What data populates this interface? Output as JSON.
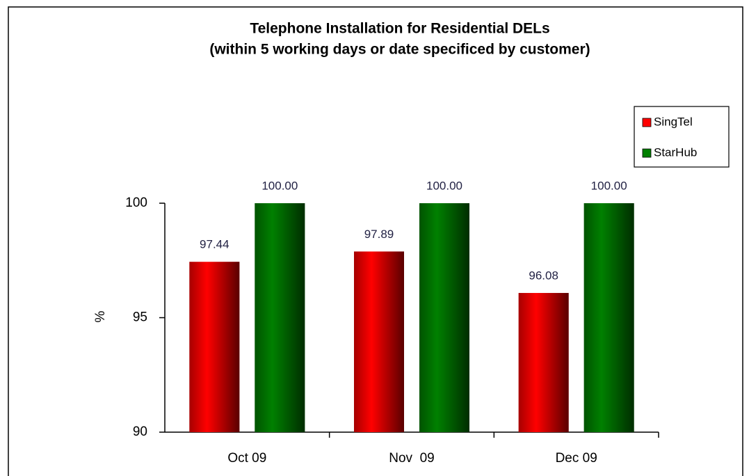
{
  "chart_data": {
    "type": "bar",
    "title": "Telephone Installation for Residential DELs",
    "subtitle": "(within 5 working days or date specificed by customer)",
    "ylabel": "%",
    "categories": [
      "Oct 09",
      "Nov  09",
      "Dec 09"
    ],
    "series": [
      {
        "name": "SingTel",
        "color": "#ff0000",
        "values": [
          97.44,
          97.89,
          96.08
        ],
        "value_labels": [
          "97.44",
          "97.89",
          "96.08"
        ]
      },
      {
        "name": "StarHub",
        "color": "#008000",
        "values": [
          100,
          100,
          100
        ],
        "value_labels": [
          "100.00",
          "100.00",
          "100.00"
        ]
      }
    ],
    "ylim": [
      90,
      100
    ],
    "yticks": [
      90,
      95,
      100
    ],
    "grid": false,
    "legend": "upper right"
  }
}
